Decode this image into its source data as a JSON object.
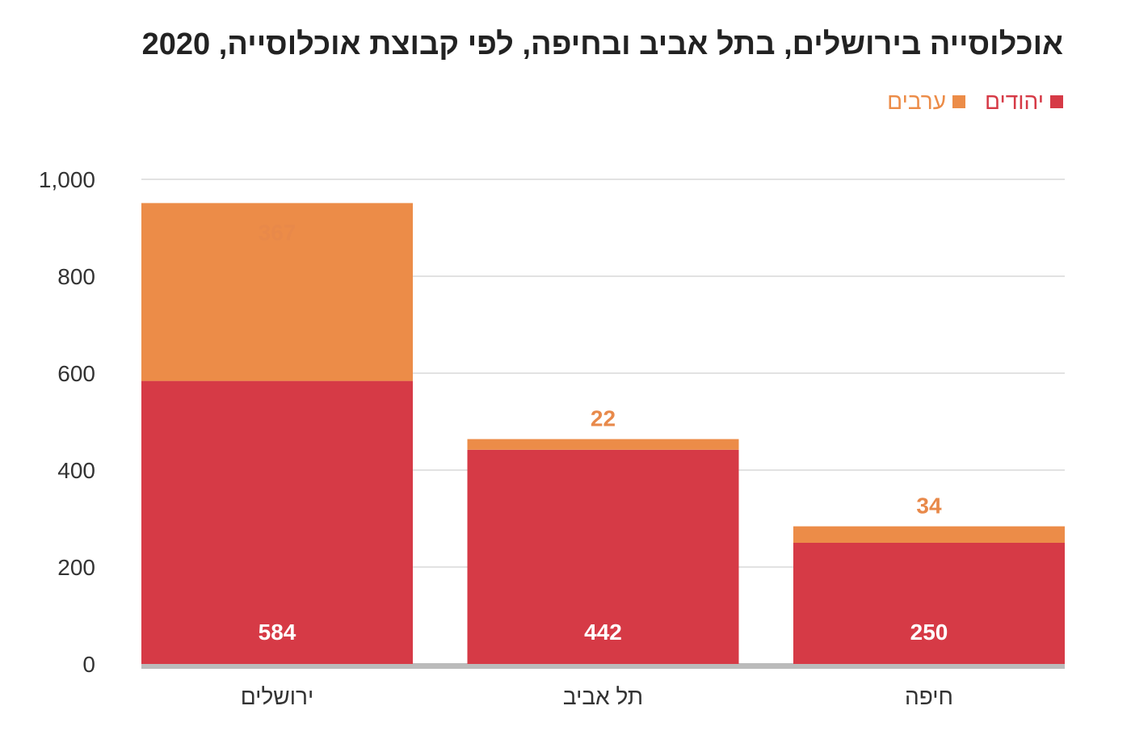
{
  "chart_data": {
    "type": "bar",
    "stacked": true,
    "title": "אוכלוסייה בירושלים, בתל אביב ובחיפה, לפי קבוצת אוכלוסייה, 2020",
    "xlabel": "",
    "ylabel": "",
    "categories": [
      "ירושלים",
      "תל אביב",
      "חיפה"
    ],
    "series": [
      {
        "name": "יהודים",
        "values": [
          584,
          442,
          250
        ],
        "color": "#d63a46",
        "label_color": "#ffffff"
      },
      {
        "name": "ערבים",
        "values": [
          367,
          22,
          34
        ],
        "color": "#ec8c48",
        "label_color": "#e8894a"
      }
    ],
    "ylim": [
      0,
      1000
    ],
    "yticks": [
      0,
      200,
      400,
      600,
      800,
      1000
    ],
    "ytick_labels": [
      "0",
      "200",
      "400",
      "600",
      "800",
      "1,000"
    ],
    "grid": true,
    "legend_position": "top-right",
    "colors": {
      "grid": "#d9d9d9",
      "baseline": "#bbbbbb",
      "text": "#333333"
    }
  }
}
